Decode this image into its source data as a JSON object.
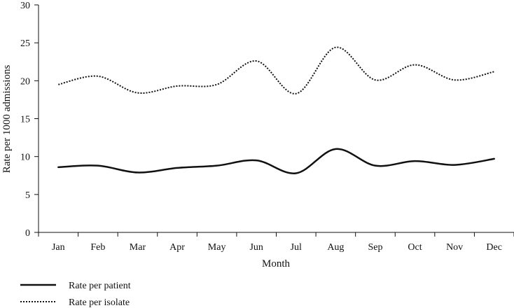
{
  "chart_data": {
    "type": "line",
    "title": "",
    "xlabel": "Month",
    "ylabel": "Rate per 1000 admissions",
    "categories": [
      "Jan",
      "Feb",
      "Mar",
      "Apr",
      "May",
      "Jun",
      "Jul",
      "Aug",
      "Sep",
      "Oct",
      "Nov",
      "Dec"
    ],
    "ylim": [
      0,
      30
    ],
    "yticks": [
      "0",
      "5",
      "10",
      "15",
      "20",
      "25",
      "30"
    ],
    "grid": false,
    "legend_position": "bottom-left",
    "series": [
      {
        "name": "Rate per patient",
        "style": "solid",
        "color": "#111111",
        "values": [
          8.6,
          8.8,
          7.9,
          8.5,
          8.8,
          9.5,
          7.8,
          11.0,
          8.8,
          9.4,
          8.9,
          9.7
        ]
      },
      {
        "name": "Rate per isolate",
        "style": "dotted",
        "color": "#111111",
        "values": [
          19.5,
          20.6,
          18.4,
          19.3,
          19.5,
          22.6,
          18.3,
          24.4,
          20.1,
          22.1,
          20.1,
          21.2
        ]
      }
    ]
  }
}
